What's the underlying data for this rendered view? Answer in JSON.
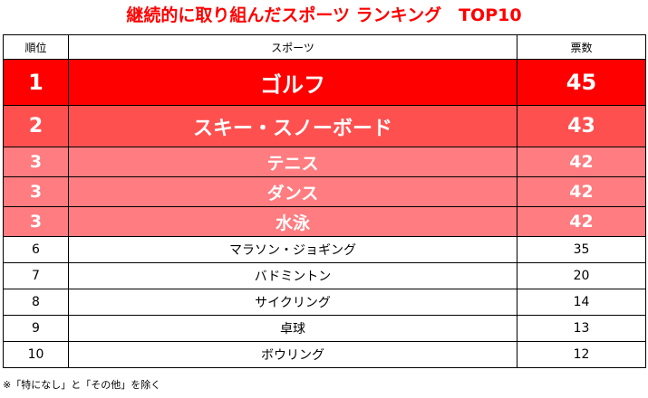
{
  "title": "継続的に取り組んだスポーツ ランキング　TOP10",
  "table": {
    "headers": {
      "rank": "順位",
      "sport": "スポーツ",
      "votes": "票数"
    },
    "rows": [
      {
        "rank": "1",
        "sport": "ゴルフ",
        "votes": "45"
      },
      {
        "rank": "2",
        "sport": "スキー・スノーボード",
        "votes": "43"
      },
      {
        "rank": "3",
        "sport": "テニス",
        "votes": "42"
      },
      {
        "rank": "3",
        "sport": "ダンス",
        "votes": "42"
      },
      {
        "rank": "3",
        "sport": "水泳",
        "votes": "42"
      },
      {
        "rank": "6",
        "sport": "マラソン・ジョギング",
        "votes": "35"
      },
      {
        "rank": "7",
        "sport": "バドミントン",
        "votes": "20"
      },
      {
        "rank": "8",
        "sport": "サイクリング",
        "votes": "14"
      },
      {
        "rank": "9",
        "sport": "卓球",
        "votes": "13"
      },
      {
        "rank": "10",
        "sport": "ボウリング",
        "votes": "12"
      }
    ]
  },
  "footnote": "※「特になし」と「その他」を除く",
  "colors": {
    "title": "#ff0000",
    "rank1_bg": "#ff0000",
    "rank2_bg": "#ff5050",
    "rank3_bg": "#ff7c80"
  }
}
